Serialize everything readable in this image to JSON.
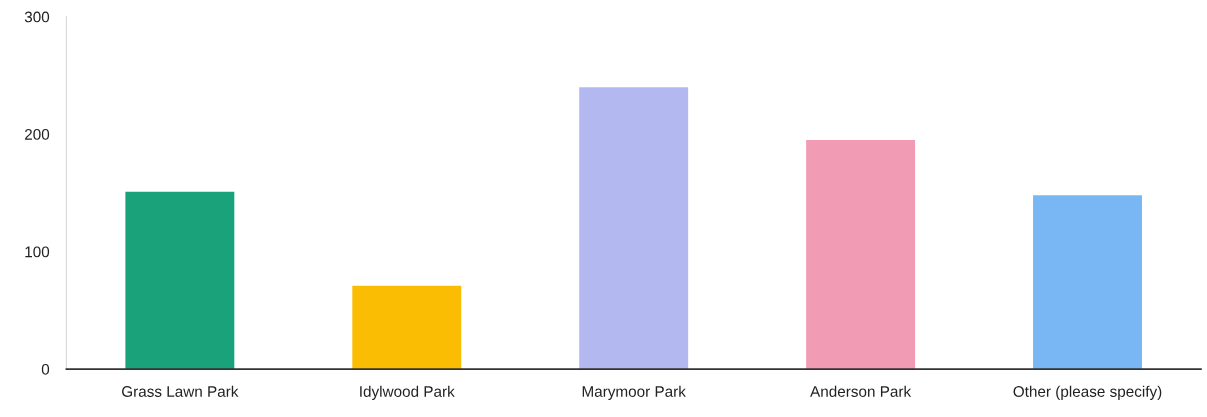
{
  "chart_data": {
    "type": "bar",
    "categories": [
      "Grass Lawn Park",
      "Idylwood Park",
      "Marymoor Park",
      "Anderson Park",
      "Other (please specify)"
    ],
    "values": [
      151,
      71,
      240,
      195,
      148
    ],
    "colors": [
      "#1aa27a",
      "#fbbc04",
      "#b4b8f0",
      "#f29bb4",
      "#78b7f4"
    ],
    "ylim": [
      0,
      300
    ],
    "yticks": [
      0,
      100,
      200,
      300
    ],
    "grid": false,
    "legend": false
  }
}
